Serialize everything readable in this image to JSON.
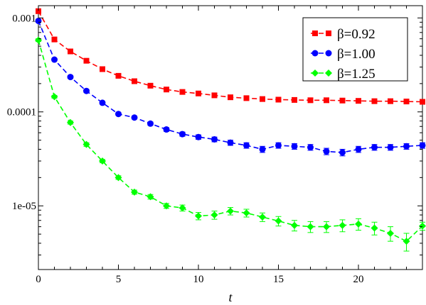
{
  "chart_data": {
    "type": "scatter",
    "title": "",
    "xlabel": "t",
    "ylabel": "",
    "xlim": [
      0,
      24
    ],
    "ylim": [
      2.1e-06,
      0.00135
    ],
    "yscale": "log",
    "grid": false,
    "legend_position": "top-right",
    "x_ticks": [
      0,
      5,
      10,
      15,
      20
    ],
    "y_ticks": [
      {
        "value": 0.001,
        "label": "0.001"
      },
      {
        "value": 0.0001,
        "label": "0.0001"
      },
      {
        "value": 1e-05,
        "label": "1e-05"
      }
    ],
    "series": [
      {
        "name": "β=0.92",
        "color": "#ff0000",
        "marker": "square",
        "x": [
          0,
          1,
          2,
          3,
          4,
          5,
          6,
          7,
          8,
          9,
          10,
          11,
          12,
          13,
          14,
          15,
          16,
          17,
          18,
          19,
          20,
          21,
          22,
          23,
          24
        ],
        "y": [
          0.00118,
          0.00059,
          0.00044,
          0.00035,
          0.000285,
          0.000242,
          0.000212,
          0.00019,
          0.000173,
          0.000163,
          0.000157,
          0.00015,
          0.000143,
          0.00014,
          0.000137,
          0.000135,
          0.000134,
          0.000133,
          0.000133,
          0.000132,
          0.000131,
          0.00013,
          0.00013,
          0.000129,
          0.000128
        ],
        "yerr": [
          2e-05,
          1.5e-05,
          1.2e-05,
          1e-05,
          8e-06,
          7e-06,
          6e-06,
          5e-06,
          5e-06,
          5e-06,
          5e-06,
          5e-06,
          5e-06,
          5e-06,
          5e-06,
          5e-06,
          5e-06,
          5e-06,
          5e-06,
          5e-06,
          5e-06,
          5e-06,
          5e-06,
          5e-06,
          5e-06
        ]
      },
      {
        "name": "β=1.00",
        "color": "#0000ff",
        "marker": "circle",
        "x": [
          0,
          1,
          2,
          3,
          4,
          5,
          6,
          7,
          8,
          9,
          10,
          11,
          12,
          13,
          14,
          15,
          16,
          17,
          18,
          19,
          20,
          21,
          22,
          23,
          24
        ],
        "y": [
          0.00093,
          0.00036,
          0.000235,
          0.000167,
          0.000125,
          9.5e-05,
          8.7e-05,
          7.5e-05,
          6.5e-05,
          5.8e-05,
          5.4e-05,
          5.1e-05,
          4.7e-05,
          4.4e-05,
          4e-05,
          4.4e-05,
          4.3e-05,
          4.2e-05,
          3.8e-05,
          3.7e-05,
          4e-05,
          4.2e-05,
          4.2e-05,
          4.3e-05,
          4.4e-05
        ],
        "yerr": [
          3e-05,
          1.2e-05,
          8e-06,
          6e-06,
          4e-06,
          3e-06,
          3e-06,
          3e-06,
          3e-06,
          3e-06,
          3e-06,
          3e-06,
          3e-06,
          3e-06,
          3e-06,
          3e-06,
          3e-06,
          3e-06,
          3e-06,
          3e-06,
          3e-06,
          3e-06,
          3e-06,
          3e-06,
          3e-06
        ]
      },
      {
        "name": "β=1.25",
        "color": "#00ff00",
        "marker": "diamond",
        "x": [
          0,
          1,
          2,
          3,
          4,
          5,
          6,
          7,
          8,
          9,
          10,
          11,
          12,
          13,
          14,
          15,
          16,
          17,
          18,
          19,
          20,
          21,
          22,
          23,
          24
        ],
        "y": [
          0.00058,
          0.000145,
          7.7e-05,
          4.5e-05,
          3e-05,
          2e-05,
          1.4e-05,
          1.25e-05,
          1e-05,
          9.5e-06,
          7.8e-06,
          8e-06,
          8.8e-06,
          8.4e-06,
          7.6e-06,
          6.9e-06,
          6.2e-06,
          6e-06,
          6e-06,
          6.2e-06,
          6.4e-06,
          5.8e-06,
          5.1e-06,
          4.2e-06,
          6.1e-06
        ],
        "yerr": [
          2e-05,
          5e-06,
          3e-06,
          2e-06,
          1.2e-06,
          9e-07,
          7e-07,
          7e-07,
          6e-07,
          7e-07,
          7e-07,
          8e-07,
          8e-07,
          8e-07,
          8e-07,
          8e-07,
          8e-07,
          8e-07,
          8e-07,
          9e-07,
          9e-07,
          9e-07,
          9e-07,
          9e-07,
          6e-07
        ]
      }
    ]
  }
}
